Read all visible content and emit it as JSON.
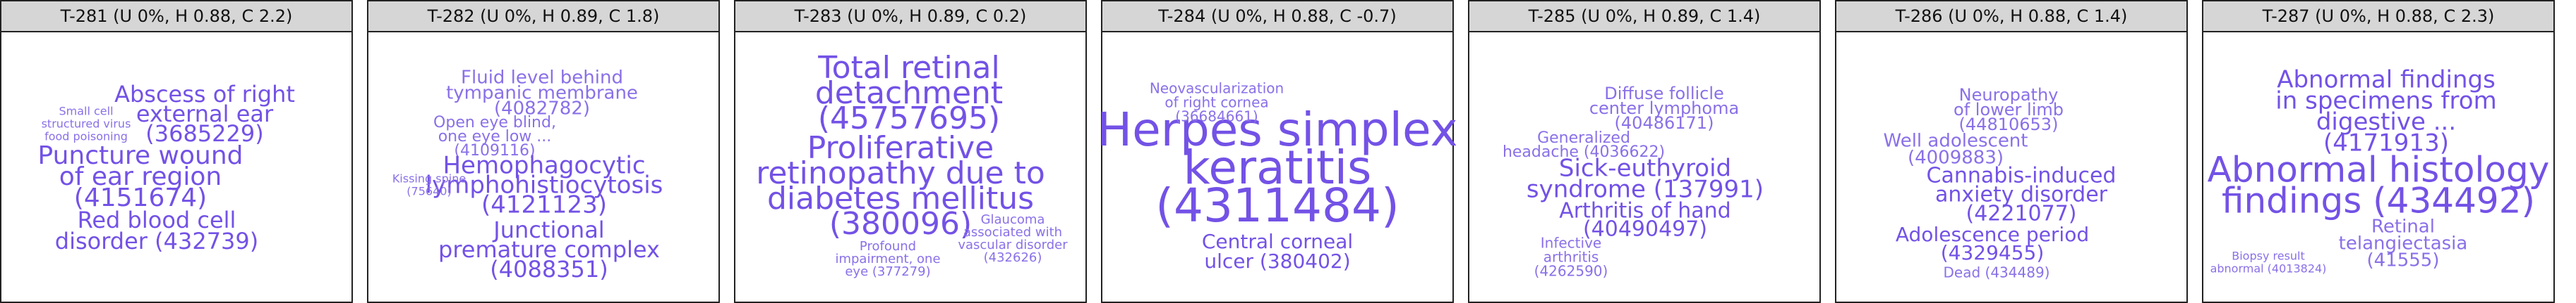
{
  "panels": [
    {
      "title": "T-281 (U 0%, H 0.88, C 2.2)",
      "words": [
        "Abscess of right",
        "external ear",
        "(3685229)",
        "Puncture wound",
        "of ear region",
        "(4151674)",
        "Red blood cell",
        "disorder (432739)",
        "Small cell",
        "structured virus",
        "food poisoning"
      ]
    },
    {
      "title": "T-282 (U 0%, H 0.89, C 1.8)",
      "words": [
        "Fluid level behind",
        "tympanic membrane",
        "(4082782)",
        "Open eye blind,",
        "one eye low ...",
        "(4109116)",
        "Hemophagocytic",
        "lymphohistiocytosis",
        "(4121123)",
        "Junctional",
        "premature complex",
        "(4088351)",
        "Kissing spine",
        "(75640)"
      ]
    },
    {
      "title": "T-283 (U 0%, H 0.89, C 0.2)",
      "words": [
        "Total retinal",
        "detachment",
        "(45757695)",
        "Proliferative",
        "retinopathy due to",
        "diabetes mellitus",
        "(380096)",
        "Glaucoma",
        "associated with",
        "vascular disorder",
        "(432626)",
        "Profound",
        "impairment, one",
        "eye (377279)"
      ]
    },
    {
      "title": "T-284 (U 0%, H 0.88, C -0.7)",
      "words": [
        "Herpes simplex",
        "keratitis",
        "(4311484)",
        "Central corneal",
        "ulcer (380402)",
        "Neovascularization",
        "of right cornea",
        "(36684661)"
      ]
    },
    {
      "title": "T-285 (U 0%, H 0.89, C 1.4)",
      "words": [
        "Diffuse follicle",
        "center lymphoma",
        "(40486171)",
        "Generalized",
        "headache (4036622)",
        "Sick-euthyroid",
        "syndrome (137991)",
        "Arthritis of hand",
        "(40490497)",
        "Infective",
        "arthritis",
        "(4262590)"
      ]
    },
    {
      "title": "T-286 (U 0%, H 0.88, C 1.4)",
      "words": [
        "Neuropathy",
        "of lower limb",
        "(44810653)",
        "Well adolescent",
        "(4009883)",
        "Cannabis-induced",
        "anxiety disorder",
        "(4221077)",
        "Adolescence period",
        "(4329455)",
        "Dead (434489)"
      ]
    },
    {
      "title": "T-287 (U 0%, H 0.88, C 2.3)",
      "words": [
        "Abnormal findings",
        "in specimens from",
        "digestive ...",
        "(4171913)",
        "Abnormal histology",
        "findings (434492)",
        "Retinal",
        "telangiectasia",
        "(41555)",
        "Biopsy result",
        "abnormal (4013824)"
      ]
    }
  ]
}
